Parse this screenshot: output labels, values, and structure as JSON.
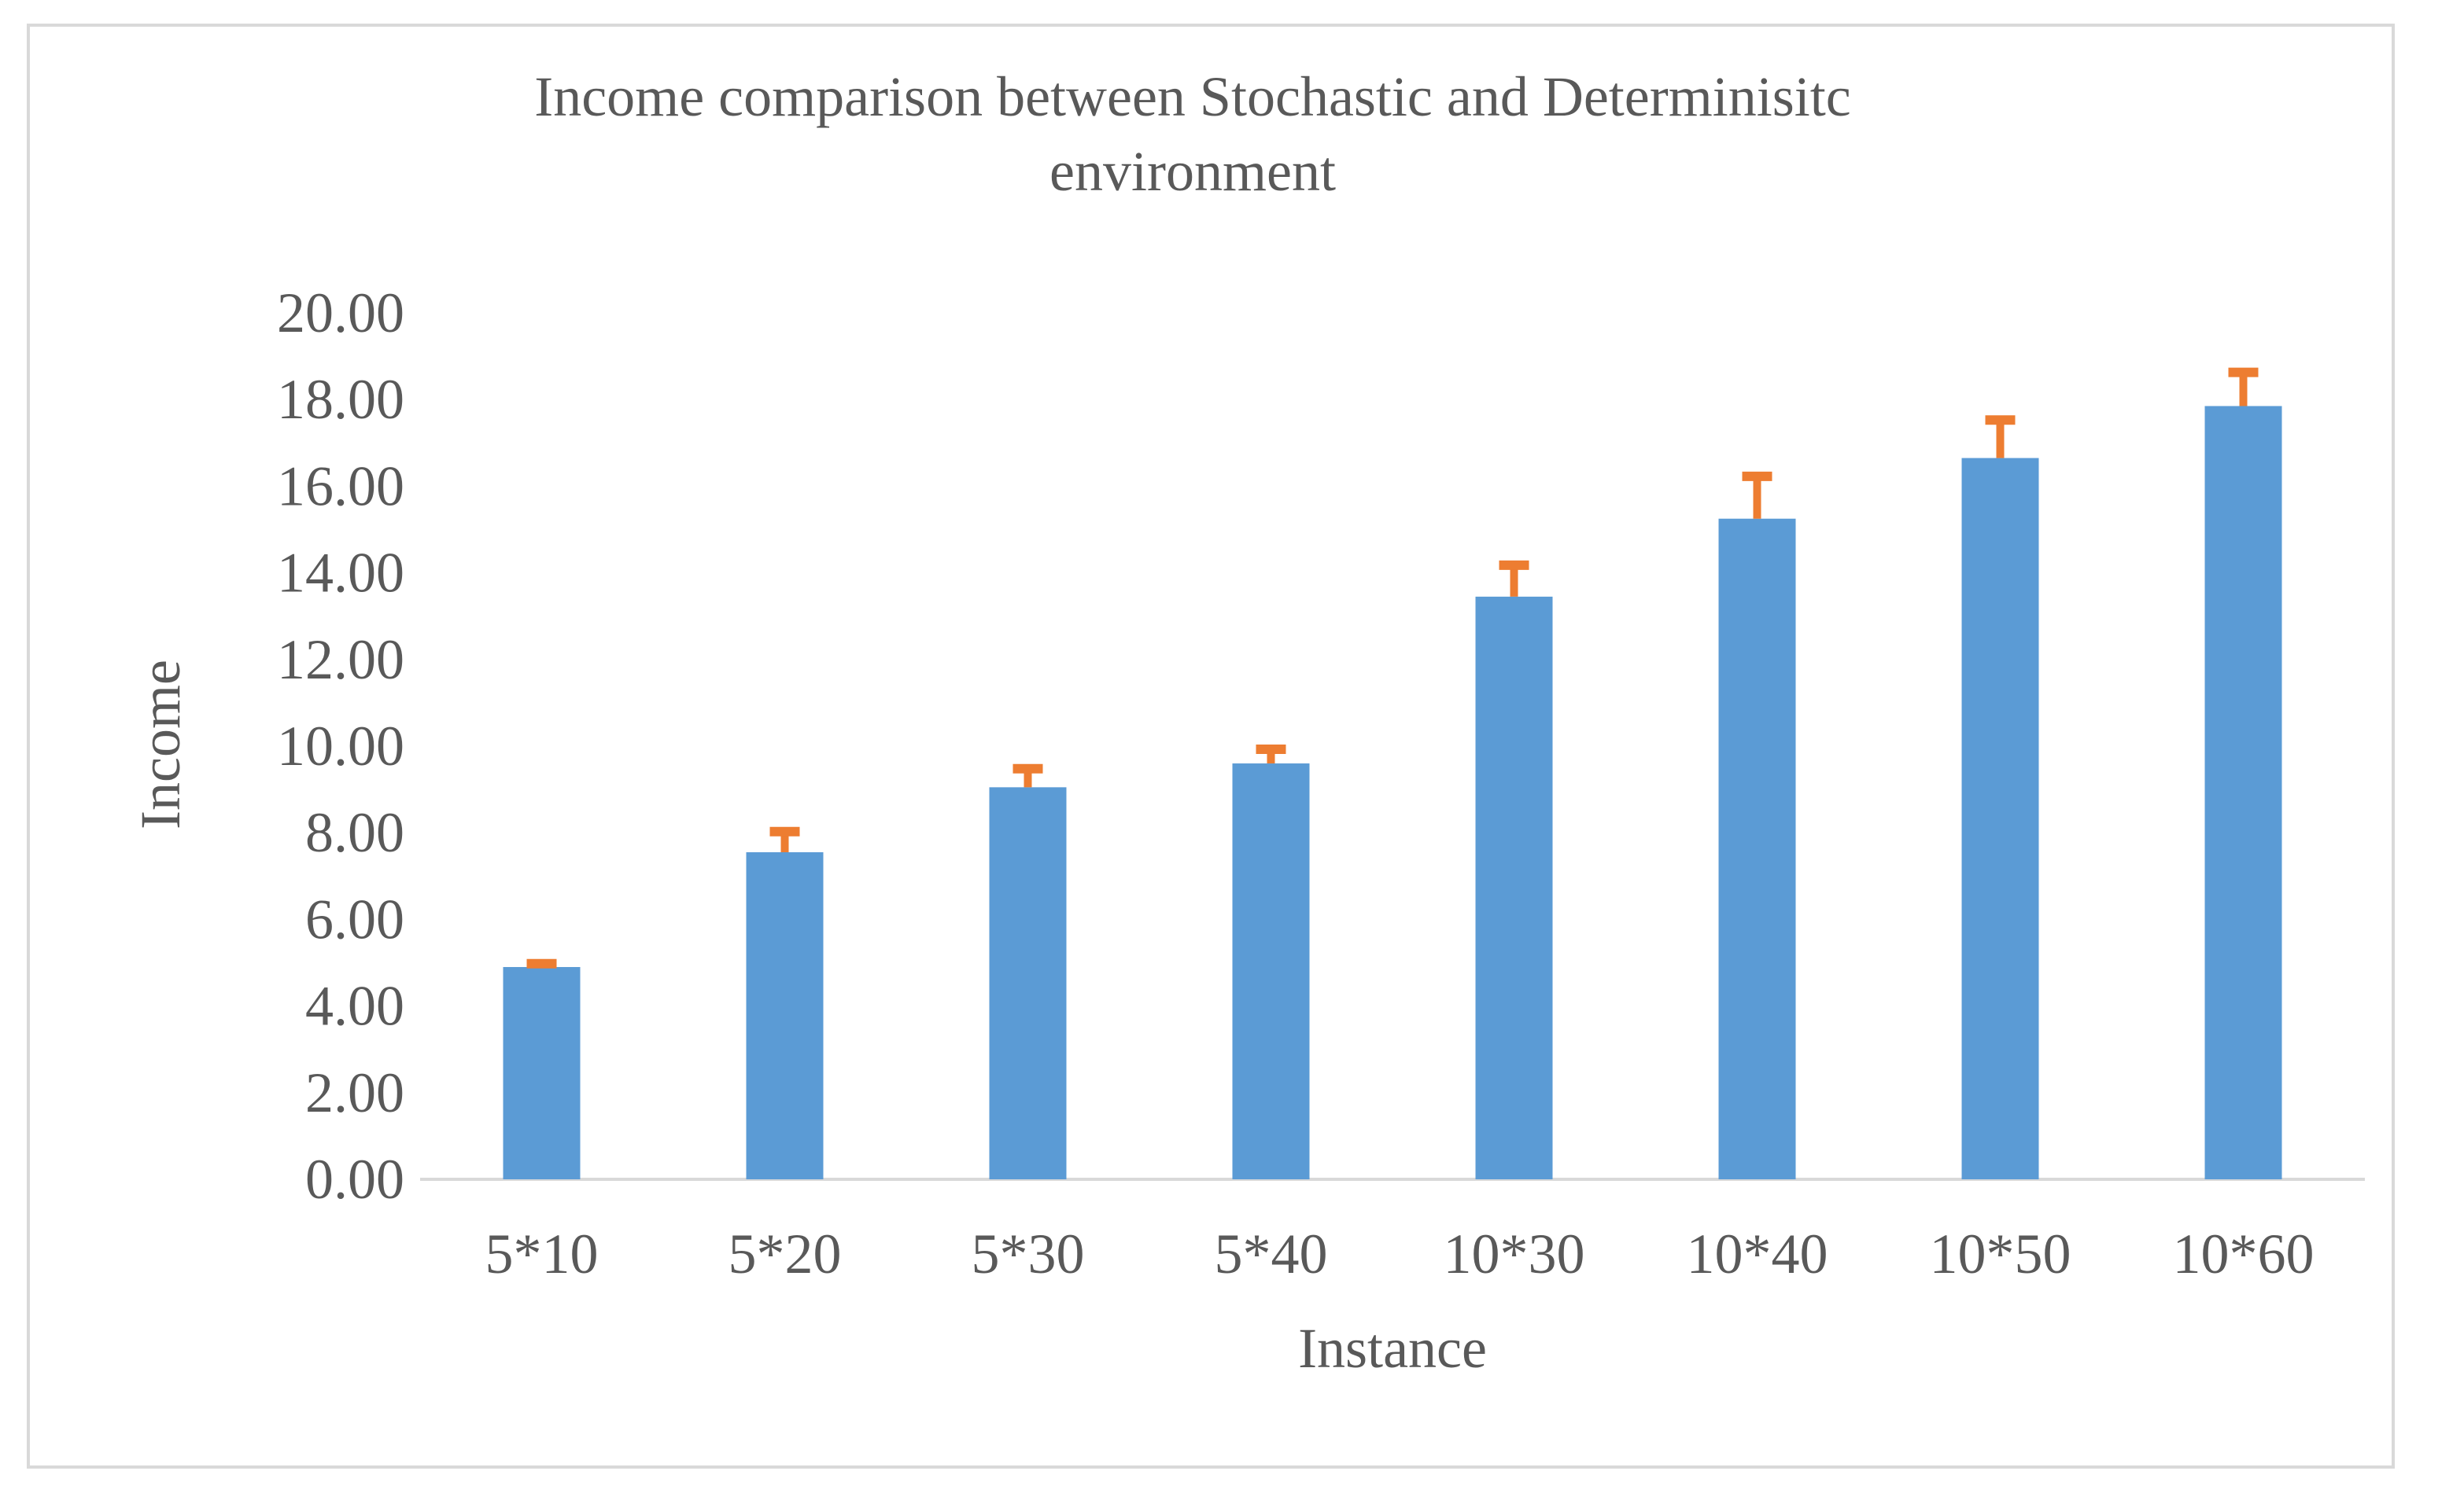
{
  "chart_data": {
    "type": "bar",
    "title_lines": [
      "Income comparison between Stochastic and Determinisitc",
      "environment"
    ],
    "xlabel": "Instance",
    "ylabel": "Income",
    "categories": [
      "5*10",
      "5*20",
      "5*30",
      "5*40",
      "10*30",
      "10*40",
      "10*50",
      "10*60"
    ],
    "series": [
      {
        "values": [
          4.9,
          7.55,
          9.05,
          9.6,
          13.45,
          15.25,
          16.65,
          17.85
        ],
        "error_plus": [
          0.15,
          0.55,
          0.5,
          0.4,
          0.8,
          1.05,
          0.95,
          0.85
        ]
      }
    ],
    "ylim": [
      0,
      20
    ],
    "yticks": [
      "0.00",
      "2.00",
      "4.00",
      "6.00",
      "8.00",
      "10.00",
      "12.00",
      "14.00",
      "16.00",
      "18.00",
      "20.00"
    ],
    "grid": false,
    "legend": "none",
    "colors": {
      "bar": "#5b9bd5",
      "error": "#ed7d31",
      "axis": "#d9d9d9",
      "text": "#595959"
    }
  }
}
